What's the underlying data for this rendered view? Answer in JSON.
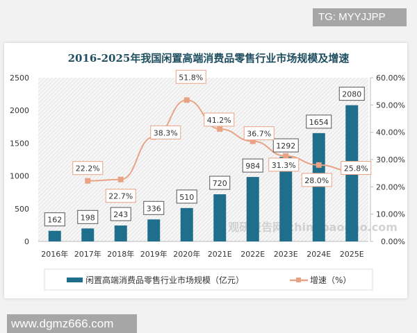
{
  "watermarks": {
    "top": "TG: MYYJJPP",
    "bottom": "www.dgmz666.com",
    "logo": "观研报告网 chinabaogao.com"
  },
  "colors": {
    "bar": "#1f6e8c",
    "line": "#e8a385",
    "title": "#1e4e5f"
  },
  "chart_data": {
    "type": "bar+line",
    "title": "2016-2025年我国闲置高端消费品零售行业市场规模及增速",
    "categories": [
      "2016年",
      "2017年",
      "2018年",
      "2019年",
      "2020年",
      "2021E",
      "2022E",
      "2023E",
      "2024E",
      "2025E"
    ],
    "series": [
      {
        "name": "闲置高端消费品零售行业市场规模（亿元）",
        "type": "bar",
        "axis": "left",
        "values": [
          162,
          198,
          243,
          336,
          510,
          720,
          984,
          1292,
          1654,
          2080
        ]
      },
      {
        "name": "增速（%）",
        "type": "line",
        "axis": "right",
        "values": [
          null,
          22.2,
          22.7,
          38.3,
          51.8,
          41.2,
          36.7,
          31.3,
          28.0,
          25.8
        ],
        "labels": [
          "",
          "22.2%",
          "22.7%",
          "38.3%",
          "51.8%",
          "41.2%",
          "36.7%",
          "31.3%",
          "28.0%",
          "25.8%"
        ]
      }
    ],
    "left_axis": {
      "range": [
        0,
        2500
      ],
      "ticks": [
        "0",
        "500",
        "1000",
        "1500",
        "2000",
        "2500"
      ]
    },
    "right_axis": {
      "range": [
        0,
        60
      ],
      "ticks": [
        "0.00%",
        "10.00%",
        "20.00%",
        "30.00%",
        "40.00%",
        "50.00%",
        "60.00%"
      ]
    },
    "legend": "bottom"
  }
}
